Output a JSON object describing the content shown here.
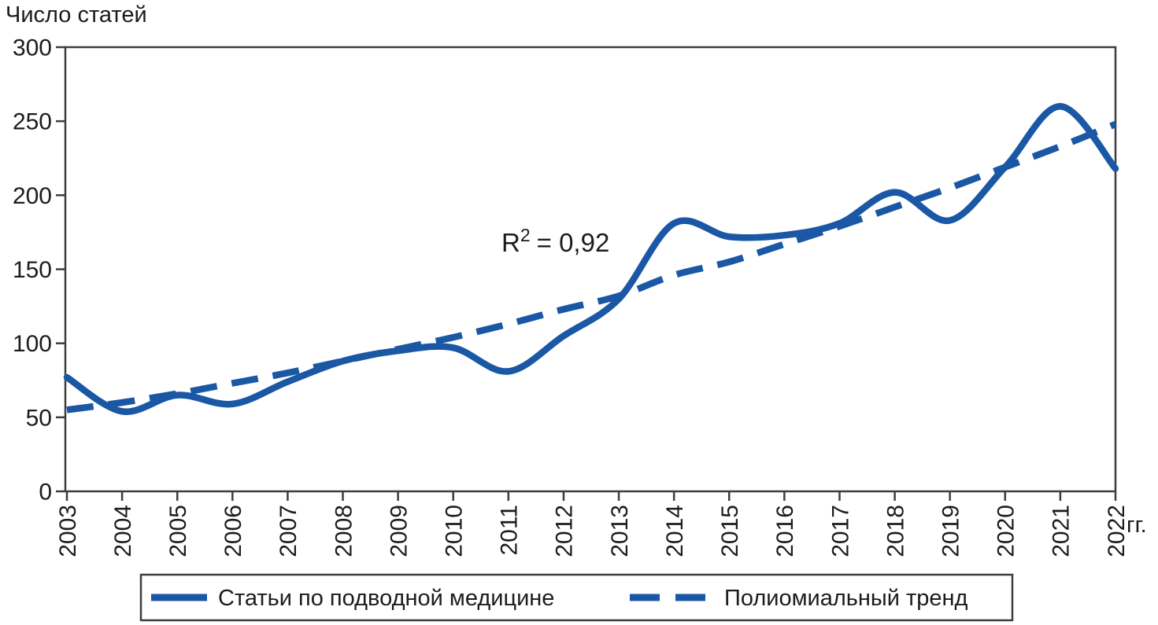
{
  "title": "Число статей",
  "x_axis_unit": "гг.",
  "annotation": {
    "base": "R",
    "sup": "2",
    "rest": "= 0,92"
  },
  "colors": {
    "line": "#1a57a4",
    "axis": "#3d3d3d",
    "text": "#1c1c1c",
    "background": "#ffffff"
  },
  "y_axis": {
    "ticks": [
      0,
      50,
      100,
      150,
      200,
      250,
      300
    ]
  },
  "chart_data": {
    "type": "line",
    "title": "Число статей",
    "xlabel": "гг.",
    "ylabel": "Число статей",
    "x": [
      2003,
      2004,
      2005,
      2006,
      2007,
      2008,
      2009,
      2010,
      2011,
      2012,
      2013,
      2014,
      2015,
      2016,
      2017,
      2018,
      2019,
      2020,
      2021,
      2022
    ],
    "series": [
      {
        "name": "Статьи по подводной медицине",
        "style": "solid",
        "values": [
          77,
          54,
          65,
          59,
          74,
          88,
          95,
          97,
          81,
          105,
          130,
          181,
          172,
          173,
          181,
          202,
          183,
          219,
          260,
          218
        ]
      },
      {
        "name": "Полиомиальный тренд",
        "style": "dashed",
        "values": [
          55,
          60,
          66,
          73,
          80,
          88,
          96,
          104,
          113,
          123,
          132,
          146,
          155,
          167,
          179,
          192,
          205,
          219,
          233,
          248
        ]
      }
    ],
    "ylim": [
      0,
      300
    ],
    "yticks": [
      0,
      50,
      100,
      150,
      200,
      250,
      300
    ],
    "annotation": "R² = 0,92",
    "legend_position": "bottom",
    "grid": false
  },
  "legend": {
    "items": [
      {
        "label": "Статьи по подводной медицине",
        "style": "solid"
      },
      {
        "label": "Полиомиальный тренд",
        "style": "dashed"
      }
    ]
  }
}
